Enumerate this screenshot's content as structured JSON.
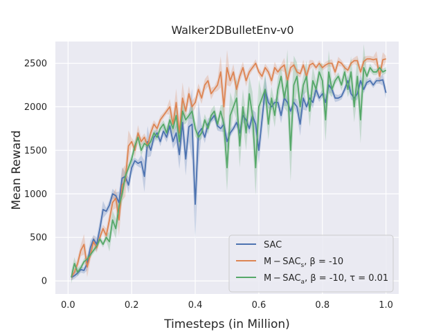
{
  "chart_data": {
    "type": "line",
    "title": "Walker2DBulletEnv-v0",
    "xlabel": "Timesteps (in Million)",
    "ylabel": "Mean Reward",
    "xlim": [
      -0.04,
      1.04
    ],
    "ylim": [
      -150,
      2750
    ],
    "xticks": [
      0.0,
      0.2,
      0.4,
      0.6,
      0.8,
      1.0
    ],
    "xtick_labels": [
      "0.0",
      "0.2",
      "0.4",
      "0.6",
      "0.8",
      "1.0"
    ],
    "yticks": [
      0,
      500,
      1000,
      1500,
      2000,
      2500
    ],
    "ytick_labels": [
      "0",
      "500",
      "1000",
      "1500",
      "2000",
      "2500"
    ],
    "grid": true,
    "legend_position": "bottom-right",
    "shaded_bands": true,
    "series": [
      {
        "name": "SAC",
        "legend": {
          "base": "M − SAC",
          "sub": "",
          "rest": ""
        },
        "color": "#4c72b0",
        "x": [
          0.01,
          0.02,
          0.03,
          0.04,
          0.05,
          0.06,
          0.07,
          0.08,
          0.09,
          0.1,
          0.11,
          0.12,
          0.13,
          0.14,
          0.15,
          0.16,
          0.17,
          0.18,
          0.19,
          0.2,
          0.21,
          0.22,
          0.23,
          0.24,
          0.25,
          0.26,
          0.27,
          0.28,
          0.29,
          0.3,
          0.31,
          0.32,
          0.33,
          0.34,
          0.35,
          0.36,
          0.37,
          0.38,
          0.39,
          0.4,
          0.41,
          0.42,
          0.43,
          0.44,
          0.45,
          0.46,
          0.47,
          0.48,
          0.49,
          0.5,
          0.51,
          0.52,
          0.53,
          0.54,
          0.55,
          0.56,
          0.57,
          0.58,
          0.59,
          0.6,
          0.61,
          0.62,
          0.63,
          0.64,
          0.65,
          0.66,
          0.67,
          0.68,
          0.69,
          0.7,
          0.71,
          0.72,
          0.73,
          0.74,
          0.75,
          0.76,
          0.77,
          0.78,
          0.79,
          0.8,
          0.81,
          0.82,
          0.83,
          0.84,
          0.85,
          0.86,
          0.87,
          0.88,
          0.89,
          0.9,
          0.91,
          0.92,
          0.93,
          0.94,
          0.95,
          0.96,
          0.97,
          0.98,
          0.99,
          1.0
        ],
        "y": [
          40,
          60,
          90,
          130,
          120,
          200,
          380,
          480,
          420,
          600,
          820,
          800,
          870,
          1000,
          980,
          900,
          1180,
          1200,
          1100,
          1300,
          1380,
          1350,
          1370,
          1200,
          1600,
          1500,
          1650,
          1700,
          1600,
          1720,
          1650,
          1780,
          1600,
          1700,
          1450,
          1820,
          1400,
          1770,
          1800,
          880,
          1700,
          1750,
          1650,
          1800,
          1850,
          1900,
          1780,
          1750,
          1800,
          1600,
          1700,
          1750,
          1820,
          1700,
          1900,
          1850,
          1750,
          1900,
          1800,
          1500,
          1850,
          2200,
          2050,
          2000,
          2050,
          2050,
          1900,
          2100,
          2050,
          1950,
          2050,
          2000,
          1800,
          2100,
          2000,
          2100,
          2050,
          2200,
          2100,
          2150,
          2050,
          2250,
          2200,
          2100,
          2100,
          2120,
          2200,
          2300,
          2150,
          2100,
          2150,
          2300,
          2200,
          2280,
          2300,
          2250,
          2300,
          2300,
          2310,
          2160
        ]
      },
      {
        "name": "M-SAC_s",
        "legend": {
          "base": "M − SAC",
          "sub": "s",
          "rest": ", β = -10"
        },
        "color": "#dd8452",
        "x": [
          0.01,
          0.02,
          0.03,
          0.04,
          0.05,
          0.06,
          0.07,
          0.08,
          0.09,
          0.1,
          0.11,
          0.12,
          0.13,
          0.14,
          0.15,
          0.16,
          0.17,
          0.18,
          0.19,
          0.2,
          0.21,
          0.22,
          0.23,
          0.24,
          0.25,
          0.26,
          0.27,
          0.28,
          0.29,
          0.3,
          0.31,
          0.32,
          0.33,
          0.34,
          0.35,
          0.36,
          0.37,
          0.38,
          0.39,
          0.4,
          0.41,
          0.42,
          0.43,
          0.44,
          0.45,
          0.46,
          0.47,
          0.48,
          0.49,
          0.5,
          0.51,
          0.52,
          0.53,
          0.54,
          0.55,
          0.56,
          0.57,
          0.58,
          0.59,
          0.6,
          0.61,
          0.62,
          0.63,
          0.64,
          0.65,
          0.66,
          0.67,
          0.68,
          0.69,
          0.7,
          0.71,
          0.72,
          0.73,
          0.74,
          0.75,
          0.76,
          0.77,
          0.78,
          0.79,
          0.8,
          0.81,
          0.82,
          0.83,
          0.84,
          0.85,
          0.86,
          0.87,
          0.88,
          0.89,
          0.9,
          0.91,
          0.92,
          0.93,
          0.94,
          0.95,
          0.96,
          0.97,
          0.98,
          0.99,
          1.0
        ],
        "y": [
          40,
          100,
          200,
          350,
          420,
          160,
          300,
          450,
          380,
          500,
          600,
          520,
          700,
          900,
          950,
          700,
          1100,
          1150,
          1550,
          1600,
          1500,
          1700,
          1600,
          1650,
          1550,
          1700,
          1800,
          1750,
          1850,
          1900,
          1950,
          2000,
          1800,
          2050,
          1700,
          2100,
          1950,
          2150,
          2000,
          2050,
          2200,
          2100,
          2250,
          2300,
          2150,
          2200,
          2250,
          2400,
          2000,
          2450,
          2300,
          2400,
          2200,
          2350,
          2450,
          2300,
          2400,
          2450,
          2500,
          2400,
          2350,
          2450,
          2400,
          2300,
          2450,
          2400,
          2450,
          2480,
          2300,
          2450,
          2480,
          2400,
          2380,
          2480,
          2350,
          2480,
          2500,
          2450,
          2500,
          2450,
          2480,
          2500,
          2500,
          2400,
          2520,
          2500,
          2450,
          2420,
          2500,
          2530,
          2530,
          2400,
          2520,
          2550,
          2550,
          2540,
          2550,
          2350,
          2540,
          2550
        ]
      },
      {
        "name": "M-SAC_a",
        "legend": {
          "base": "M − SAC",
          "sub": "a",
          "rest": ", β = -10, τ = 0.01"
        },
        "color": "#55a868",
        "x": [
          0.01,
          0.02,
          0.03,
          0.04,
          0.05,
          0.06,
          0.07,
          0.08,
          0.09,
          0.1,
          0.11,
          0.12,
          0.13,
          0.14,
          0.15,
          0.16,
          0.17,
          0.18,
          0.19,
          0.2,
          0.21,
          0.22,
          0.23,
          0.24,
          0.25,
          0.26,
          0.27,
          0.28,
          0.29,
          0.3,
          0.31,
          0.32,
          0.33,
          0.34,
          0.35,
          0.36,
          0.37,
          0.38,
          0.39,
          0.4,
          0.41,
          0.42,
          0.43,
          0.44,
          0.45,
          0.46,
          0.47,
          0.48,
          0.49,
          0.5,
          0.51,
          0.52,
          0.53,
          0.54,
          0.55,
          0.56,
          0.57,
          0.58,
          0.59,
          0.6,
          0.61,
          0.62,
          0.63,
          0.64,
          0.65,
          0.66,
          0.67,
          0.68,
          0.69,
          0.7,
          0.71,
          0.72,
          0.73,
          0.74,
          0.75,
          0.76,
          0.77,
          0.78,
          0.79,
          0.8,
          0.81,
          0.82,
          0.83,
          0.84,
          0.85,
          0.86,
          0.87,
          0.88,
          0.89,
          0.9,
          0.91,
          0.92,
          0.93,
          0.94,
          0.95,
          0.96,
          0.97,
          0.98,
          0.99,
          1.0
        ],
        "y": [
          40,
          200,
          100,
          150,
          220,
          250,
          300,
          350,
          400,
          480,
          420,
          500,
          450,
          700,
          600,
          850,
          1000,
          1200,
          1300,
          1400,
          1550,
          1650,
          1500,
          1580,
          1550,
          1600,
          1700,
          1650,
          1750,
          1800,
          1700,
          1850,
          1750,
          1900,
          1600,
          1950,
          1850,
          1900,
          1950,
          1750,
          1650,
          1700,
          1850,
          1750,
          1900,
          1950,
          1800,
          1950,
          1800,
          1300,
          1900,
          2000,
          2100,
          1550,
          2000,
          1700,
          2150,
          1900,
          1300,
          2000,
          2100,
          2200,
          1800,
          2100,
          1900,
          2200,
          2350,
          2100,
          2300,
          1500,
          2250,
          2350,
          2000,
          2250,
          2350,
          1950,
          2300,
          2200,
          2400,
          2300,
          1850,
          2400,
          2200,
          2300,
          2350,
          2250,
          2400,
          2200,
          2400,
          2000,
          2350,
          1850,
          2450,
          2350,
          2450,
          2400,
          2400,
          2450,
          2400,
          2420
        ]
      }
    ]
  }
}
